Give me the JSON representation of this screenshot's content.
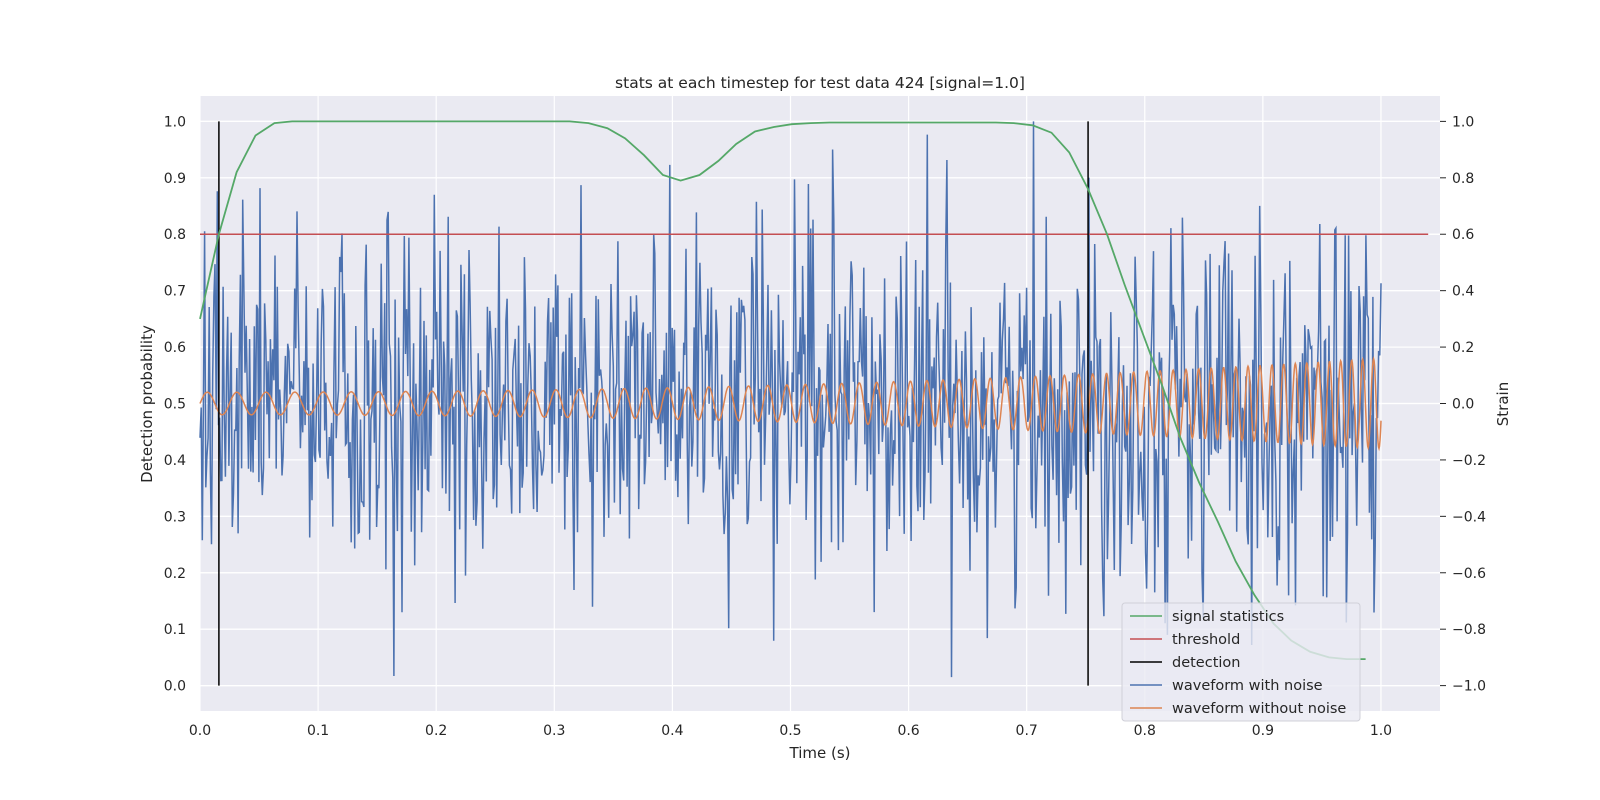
{
  "chart_data": {
    "type": "line",
    "title": "stats at each timestep for test data 424 [signal=1.0]",
    "xlabel": "Time (s)",
    "ylabel_left": "Detection probability",
    "ylabel_right": "Strain",
    "xlim": [
      0.0,
      1.05
    ],
    "ylim_left": [
      -0.045,
      1.045
    ],
    "ylim_right": [
      -1.09,
      1.09
    ],
    "x_ticks": [
      0.0,
      0.1,
      0.2,
      0.3,
      0.4,
      0.5,
      0.6,
      0.7,
      0.8,
      0.9,
      1.0
    ],
    "x_tick_labels": [
      "0.0",
      "0.1",
      "0.2",
      "0.3",
      "0.4",
      "0.5",
      "0.6",
      "0.7",
      "0.8",
      "0.9",
      "1.0"
    ],
    "y_left_ticks": [
      0.0,
      0.1,
      0.2,
      0.3,
      0.4,
      0.5,
      0.6,
      0.7,
      0.8,
      0.9,
      1.0
    ],
    "y_left_tick_labels": [
      "0.0",
      "0.1",
      "0.2",
      "0.3",
      "0.4",
      "0.5",
      "0.6",
      "0.7",
      "0.8",
      "0.9",
      "1.0"
    ],
    "y_right_ticks": [
      -1.0,
      -0.8,
      -0.6,
      -0.4,
      -0.2,
      0.0,
      0.2,
      0.4,
      0.6,
      0.8,
      1.0
    ],
    "y_right_tick_labels": [
      "−1.0",
      "−0.8",
      "−0.6",
      "−0.4",
      "−0.2",
      "0.0",
      "0.2",
      "0.4",
      "0.6",
      "0.8",
      "1.0"
    ],
    "grid": true,
    "legend_position": "lower-right",
    "colors": {
      "plot_bg": "#eaeaf2",
      "grid": "#ffffff",
      "signal_statistics": "#55a868",
      "threshold": "#c44e52",
      "detection": "#000000",
      "waveform_with_noise": "#4c72b0",
      "waveform_without_noise": "#dd8452"
    },
    "series": [
      {
        "name": "signal statistics",
        "axis": "left",
        "x": [
          0.0,
          0.016,
          0.031,
          0.047,
          0.063,
          0.078,
          0.094,
          0.11,
          0.125,
          0.141,
          0.157,
          0.172,
          0.188,
          0.204,
          0.219,
          0.235,
          0.251,
          0.266,
          0.282,
          0.298,
          0.313,
          0.329,
          0.345,
          0.36,
          0.376,
          0.392,
          0.407,
          0.423,
          0.439,
          0.454,
          0.47,
          0.486,
          0.501,
          0.517,
          0.533,
          0.548,
          0.564,
          0.58,
          0.595,
          0.611,
          0.627,
          0.642,
          0.658,
          0.674,
          0.689,
          0.705,
          0.721,
          0.736,
          0.752,
          0.768,
          0.783,
          0.799,
          0.815,
          0.83,
          0.846,
          0.862,
          0.877,
          0.893,
          0.909,
          0.924,
          0.94,
          0.956,
          0.971,
          0.987
        ],
        "values": [
          0.65,
          0.8,
          0.91,
          0.975,
          0.997,
          1.0,
          1.0,
          1.0,
          1.0,
          1.0,
          1.0,
          1.0,
          1.0,
          1.0,
          1.0,
          1.0,
          1.0,
          1.0,
          1.0,
          1.0,
          1.0,
          0.997,
          0.988,
          0.97,
          0.94,
          0.905,
          0.895,
          0.905,
          0.93,
          0.96,
          0.982,
          0.99,
          0.995,
          0.997,
          0.998,
          0.998,
          0.998,
          0.998,
          0.998,
          0.998,
          0.998,
          0.998,
          0.998,
          0.998,
          0.997,
          0.993,
          0.98,
          0.945,
          0.88,
          0.8,
          0.71,
          0.62,
          0.53,
          0.44,
          0.36,
          0.29,
          0.22,
          0.16,
          0.11,
          0.08,
          0.06,
          0.05,
          0.047,
          0.047
        ]
      },
      {
        "name": "threshold",
        "axis": "left",
        "x": [
          0.0,
          1.04
        ],
        "values": [
          0.8,
          0.8
        ]
      },
      {
        "name": "detection",
        "axis": "left",
        "lines_x": [
          0.016,
          0.752
        ],
        "range": [
          0.0,
          1.0
        ]
      },
      {
        "name": "waveform with noise",
        "axis": "right",
        "x_range": [
          0.0,
          1.0
        ],
        "points": 1024,
        "value_range": [
          -0.97,
          1.0
        ]
      },
      {
        "name": "waveform without noise",
        "axis": "right",
        "x_range": [
          0.0,
          1.0
        ],
        "amplitude_start": 0.04,
        "amplitude_end": 0.16,
        "freq_start_hz": 40,
        "freq_end_hz": 110
      }
    ],
    "legend": [
      "signal statistics",
      "threshold",
      "detection",
      "waveform with noise",
      "waveform without noise"
    ]
  }
}
